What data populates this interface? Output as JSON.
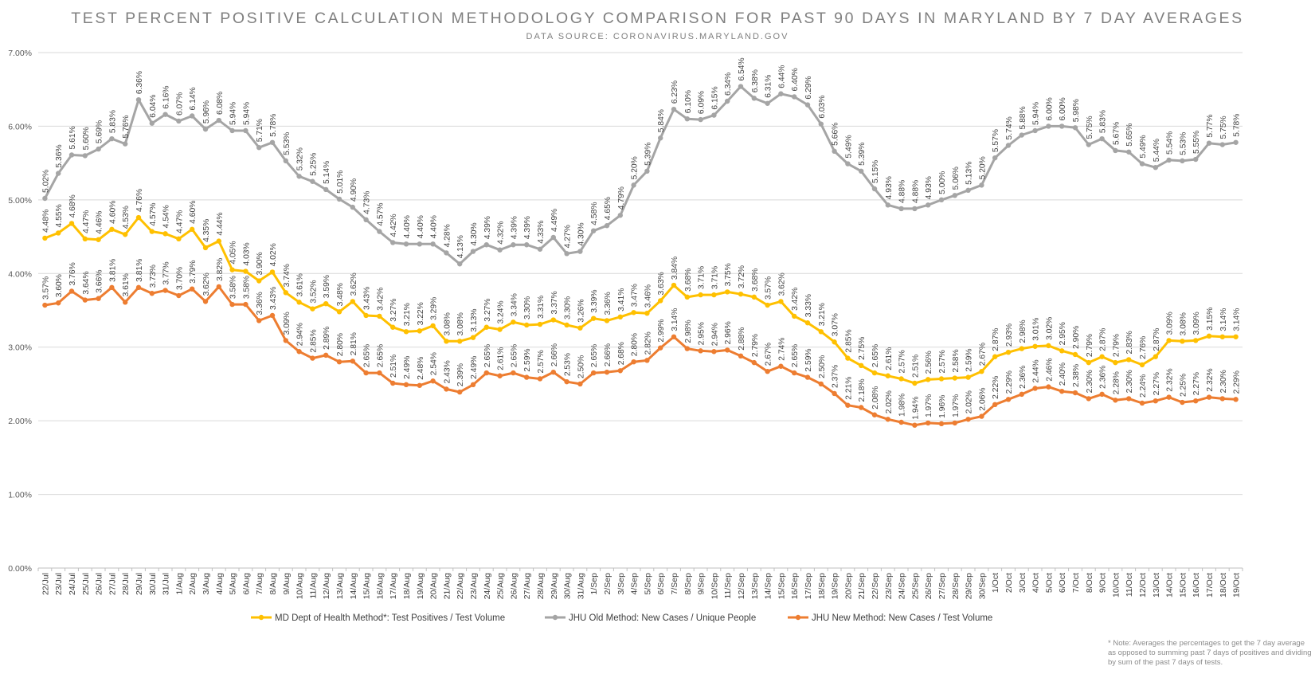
{
  "chart_data": {
    "type": "line",
    "title": "TEST PERCENT POSITIVE CALCULATION METHODOLOGY COMPARISON FOR PAST 90 DAYS IN MARYLAND BY 7 DAY AVERAGES",
    "subtitle": "DATA SOURCE: CORONAVIRUS.MARYLAND.GOV",
    "ylim": [
      0,
      7
    ],
    "yticks": [
      "0.00%",
      "1.00%",
      "2.00%",
      "3.00%",
      "4.00%",
      "5.00%",
      "6.00%",
      "7.00%"
    ],
    "grid": true,
    "legend_position": "bottom",
    "note": "* Note: Averages the percentages to get the 7 day average as opposed to summing past 7 days of positives and dividing by sum of the past 7 days of tests.",
    "categories": [
      "22/Jul",
      "23/Jul",
      "24/Jul",
      "25/Jul",
      "26/Jul",
      "27/Jul",
      "28/Jul",
      "29/Jul",
      "30/Jul",
      "31/Jul",
      "1/Aug",
      "2/Aug",
      "3/Aug",
      "4/Aug",
      "5/Aug",
      "6/Aug",
      "7/Aug",
      "8/Aug",
      "9/Aug",
      "10/Aug",
      "11/Aug",
      "12/Aug",
      "13/Aug",
      "14/Aug",
      "15/Aug",
      "16/Aug",
      "17/Aug",
      "18/Aug",
      "19/Aug",
      "20/Aug",
      "21/Aug",
      "22/Aug",
      "23/Aug",
      "24/Aug",
      "25/Aug",
      "26/Aug",
      "27/Aug",
      "28/Aug",
      "29/Aug",
      "30/Aug",
      "31/Aug",
      "1/Sep",
      "2/Sep",
      "3/Sep",
      "4/Sep",
      "5/Sep",
      "6/Sep",
      "7/Sep",
      "8/Sep",
      "9/Sep",
      "10/Sep",
      "11/Sep",
      "12/Sep",
      "13/Sep",
      "14/Sep",
      "15/Sep",
      "16/Sep",
      "17/Sep",
      "18/Sep",
      "19/Sep",
      "20/Sep",
      "21/Sep",
      "22/Sep",
      "23/Sep",
      "24/Sep",
      "25/Sep",
      "26/Sep",
      "27/Sep",
      "28/Sep",
      "29/Sep",
      "30/Sep",
      "1/Oct",
      "2/Oct",
      "3/Oct",
      "4/Oct",
      "5/Oct",
      "6/Oct",
      "7/Oct",
      "8/Oct",
      "9/Oct",
      "10/Oct",
      "11/Oct",
      "12/Oct",
      "13/Oct",
      "14/Oct",
      "15/Oct",
      "16/Oct",
      "17/Oct",
      "18/Oct",
      "19/Oct"
    ],
    "series": [
      {
        "name": "MD Dept of Health Method*: Test Positives / Test Volume",
        "color": "#ffc000",
        "values": [
          4.48,
          4.55,
          4.68,
          4.47,
          4.46,
          4.6,
          4.53,
          4.76,
          4.57,
          4.54,
          4.47,
          4.6,
          4.35,
          4.44,
          4.05,
          4.03,
          3.9,
          4.02,
          3.74,
          3.61,
          3.52,
          3.59,
          3.48,
          3.62,
          3.43,
          3.42,
          3.27,
          3.21,
          3.22,
          3.29,
          3.08,
          3.08,
          3.13,
          3.27,
          3.24,
          3.34,
          3.3,
          3.31,
          3.37,
          3.3,
          3.26,
          3.39,
          3.36,
          3.41,
          3.47,
          3.46,
          3.63,
          3.84,
          3.68,
          3.71,
          3.71,
          3.75,
          3.72,
          3.68,
          3.57,
          3.62,
          3.42,
          3.33,
          3.21,
          3.07,
          2.85,
          2.75,
          2.65,
          2.61,
          2.57,
          2.51,
          2.56,
          2.57,
          2.58,
          2.59,
          2.67,
          2.87,
          2.93,
          2.98,
          3.01,
          3.02,
          2.95,
          2.9,
          2.79,
          2.87,
          2.79,
          2.83,
          2.76,
          2.87,
          3.09,
          3.08,
          3.09,
          3.15,
          3.14,
          3.14
        ]
      },
      {
        "name": "JHU Old Method: New Cases / Unique People",
        "color": "#a5a5a5",
        "values": [
          5.02,
          5.36,
          5.61,
          5.6,
          5.69,
          5.83,
          5.76,
          6.36,
          6.04,
          6.16,
          6.07,
          6.14,
          5.96,
          6.08,
          5.94,
          5.94,
          5.71,
          5.78,
          5.53,
          5.32,
          5.25,
          5.14,
          5.01,
          4.9,
          4.73,
          4.57,
          4.42,
          4.4,
          4.4,
          4.4,
          4.28,
          4.13,
          4.3,
          4.39,
          4.32,
          4.39,
          4.39,
          4.33,
          4.49,
          4.27,
          4.3,
          4.58,
          4.65,
          4.79,
          5.2,
          5.39,
          5.84,
          6.23,
          6.1,
          6.09,
          6.15,
          6.34,
          6.54,
          6.38,
          6.31,
          6.44,
          6.4,
          6.29,
          6.03,
          5.66,
          5.49,
          5.39,
          5.15,
          4.93,
          4.88,
          4.88,
          4.93,
          5.0,
          5.06,
          5.13,
          5.2,
          5.57,
          5.74,
          5.88,
          5.94,
          6.0,
          6.0,
          5.98,
          5.75,
          5.83,
          5.67,
          5.65,
          5.49,
          5.44,
          5.54,
          5.53,
          5.55,
          5.77,
          5.75,
          5.78
        ]
      },
      {
        "name": "JHU New Method: New Cases / Test Volume",
        "color": "#ed7d31",
        "values": [
          3.57,
          3.6,
          3.76,
          3.64,
          3.66,
          3.81,
          3.61,
          3.81,
          3.73,
          3.77,
          3.7,
          3.79,
          3.62,
          3.82,
          3.58,
          3.58,
          3.36,
          3.43,
          3.09,
          2.94,
          2.85,
          2.89,
          2.8,
          2.81,
          2.65,
          2.65,
          2.51,
          2.49,
          2.48,
          2.54,
          2.43,
          2.39,
          2.49,
          2.65,
          2.61,
          2.65,
          2.59,
          2.57,
          2.66,
          2.53,
          2.5,
          2.65,
          2.66,
          2.68,
          2.8,
          2.82,
          2.99,
          3.14,
          2.98,
          2.95,
          2.94,
          2.96,
          2.88,
          2.79,
          2.67,
          2.74,
          2.65,
          2.59,
          2.5,
          2.37,
          2.21,
          2.18,
          2.08,
          2.02,
          1.98,
          1.94,
          1.97,
          1.96,
          1.97,
          2.02,
          2.06,
          2.22,
          2.29,
          2.36,
          2.44,
          2.46,
          2.4,
          2.38,
          2.3,
          2.36,
          2.28,
          2.3,
          2.24,
          2.27,
          2.32,
          2.25,
          2.27,
          2.32,
          2.3,
          2.29
        ]
      }
    ]
  }
}
